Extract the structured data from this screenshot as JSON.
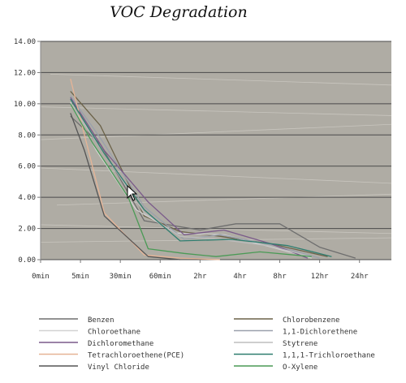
{
  "chart_data": {
    "type": "line",
    "title": "VOC Degradation",
    "xlabel": "",
    "ylabel": "",
    "categories": [
      "0min",
      "5min",
      "30min",
      "60min",
      "2hr",
      "4hr",
      "8hr",
      "12hr",
      "24hr"
    ],
    "yticks": [
      "0.00",
      "2.00",
      "4.00",
      "6.00",
      "8.00",
      "10.00",
      "12.00",
      "14.00"
    ],
    "ylim": [
      0,
      14
    ],
    "grid": true,
    "legend_position": "bottom",
    "series": [
      {
        "name": "Benzen",
        "color": "#6e6e6e",
        "points": [
          [
            0.75,
            9.2
          ],
          [
            1.5,
            7.4
          ],
          [
            2.6,
            2.5
          ],
          [
            4.0,
            1.9
          ],
          [
            4.9,
            2.3
          ],
          [
            6.0,
            2.3
          ],
          [
            7.0,
            0.8
          ],
          [
            7.9,
            0.1
          ]
        ]
      },
      {
        "name": "Chlorobenzene",
        "color": "#6b6248",
        "points": [
          [
            0.75,
            10.8
          ],
          [
            1.5,
            8.6
          ],
          [
            2.6,
            2.8
          ],
          [
            3.5,
            1.8
          ],
          [
            4.5,
            1.5
          ],
          [
            5.8,
            1.0
          ],
          [
            7.2,
            0.2
          ]
        ]
      },
      {
        "name": "Chloroethane",
        "color": "#d2d2d2",
        "points": [
          [
            0.75,
            10.1
          ],
          [
            1.4,
            7.0
          ],
          [
            2.4,
            3.2
          ],
          [
            3.4,
            1.7
          ],
          [
            4.6,
            1.6
          ],
          [
            5.8,
            0.8
          ],
          [
            6.8,
            0.1
          ]
        ]
      },
      {
        "name": "1,1-Dichlorethene",
        "color": "#9aa0ac",
        "points": [
          [
            0.75,
            10.5
          ],
          [
            1.5,
            7.8
          ],
          [
            2.6,
            3.4
          ],
          [
            3.6,
            1.3
          ],
          [
            4.5,
            1.6
          ],
          [
            5.9,
            0.9
          ],
          [
            7.0,
            0.1
          ]
        ]
      },
      {
        "name": "Dichloromethane",
        "color": "#7a5a8a",
        "points": [
          [
            0.75,
            10.4
          ],
          [
            1.6,
            7.0
          ],
          [
            2.7,
            3.7
          ],
          [
            3.6,
            1.6
          ],
          [
            4.6,
            1.9
          ],
          [
            5.8,
            1.0
          ],
          [
            6.7,
            0.1
          ]
        ]
      },
      {
        "name": "Stytrene",
        "color": "#bdbdbd",
        "points": [
          [
            0.75,
            10.0
          ],
          [
            1.5,
            7.2
          ],
          [
            2.6,
            3.0
          ],
          [
            3.5,
            1.5
          ],
          [
            4.5,
            1.3
          ],
          [
            5.7,
            0.9
          ],
          [
            6.8,
            0.2
          ]
        ]
      },
      {
        "name": "Tetrachloroethene(PCE)",
        "color": "#e6b496",
        "points": [
          [
            0.75,
            11.6
          ],
          [
            1.1,
            8.0
          ],
          [
            1.6,
            3.0
          ],
          [
            2.6,
            0.3
          ],
          [
            3.5,
            0.1
          ],
          [
            4.5,
            0.0
          ]
        ]
      },
      {
        "name": "1,1,1-Trichloroethane",
        "color": "#2f7d6f",
        "points": [
          [
            0.75,
            10.3
          ],
          [
            1.6,
            6.8
          ],
          [
            2.6,
            3.2
          ],
          [
            3.5,
            1.2
          ],
          [
            4.8,
            1.3
          ],
          [
            6.2,
            0.9
          ],
          [
            7.3,
            0.2
          ]
        ]
      },
      {
        "name": "Vinyl Chloride",
        "color": "#555555",
        "points": [
          [
            0.75,
            9.4
          ],
          [
            1.1,
            7.0
          ],
          [
            1.6,
            2.8
          ],
          [
            2.7,
            0.2
          ],
          [
            3.5,
            0.0
          ]
        ]
      },
      {
        "name": "O-Xylene",
        "color": "#4a9a55",
        "points": [
          [
            0.75,
            10.0
          ],
          [
            1.3,
            7.5
          ],
          [
            2.2,
            4.0
          ],
          [
            2.7,
            0.7
          ],
          [
            3.6,
            0.4
          ],
          [
            4.4,
            0.2
          ],
          [
            5.5,
            0.5
          ],
          [
            6.8,
            0.2
          ]
        ]
      }
    ]
  }
}
